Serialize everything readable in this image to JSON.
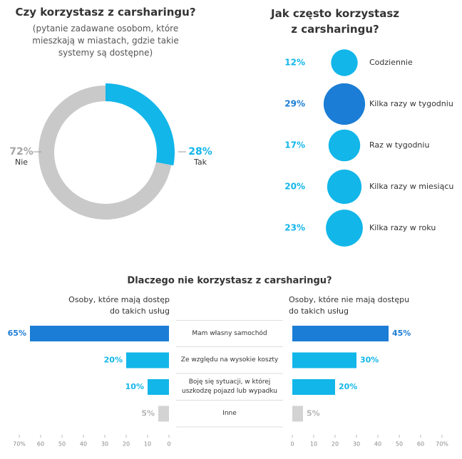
{
  "chart_data": [
    {
      "type": "donut",
      "title": "Czy korzystasz z carsharingu?",
      "subtitle": "(pytanie zadawane osobom, które mieszkają w miastach, gdzie takie systemy są dostępne)",
      "categories": [
        "Nie",
        "Tak"
      ],
      "values": [
        72,
        28
      ],
      "value_labels": [
        "72%",
        "28%"
      ],
      "colors": [
        "#c9c9c9",
        "#12b6e9"
      ]
    },
    {
      "type": "bubble",
      "title": "Jak często korzystasz z carsharingu?",
      "categories": [
        "Codziennie",
        "Kilka razy w tygodniu",
        "Raz w tygodniu",
        "Kilka razy w miesiącu",
        "Kilka razy w roku"
      ],
      "values": [
        12,
        29,
        17,
        20,
        23
      ],
      "value_labels": [
        "12%",
        "29%",
        "17%",
        "20%",
        "23%"
      ],
      "colors": [
        "#12b6e9",
        "#1b7dd5",
        "#12b6e9",
        "#12b6e9",
        "#12b6e9"
      ]
    },
    {
      "type": "butterfly-bar",
      "title": "Dlaczego nie korzystasz z carsharingu?",
      "categories": [
        "Mam własny samochód",
        "Ze względu na wysokie koszty",
        "Boję się sytuacji, w której uszkodzę pojazd lub wypadku",
        "Inne"
      ],
      "series": [
        {
          "name": "Osoby, które mają dostęp do takich usług",
          "values": [
            65,
            20,
            10,
            5
          ],
          "value_labels": [
            "65%",
            "20%",
            "10%",
            "5%"
          ],
          "colors": [
            "#1b7dd5",
            "#12b6e9",
            "#12b6e9",
            "#d3d3d3"
          ]
        },
        {
          "name": "Osoby, które nie mają dostępu do takich usług",
          "values": [
            45,
            30,
            20,
            5
          ],
          "value_labels": [
            "45%",
            "30%",
            "20%",
            "5%"
          ],
          "colors": [
            "#1b7dd5",
            "#12b6e9",
            "#12b6e9",
            "#d3d3d3"
          ]
        }
      ],
      "xlim": [
        0,
        70
      ],
      "xticks": [
        0,
        10,
        20,
        30,
        40,
        50,
        60,
        {
          "value": 70,
          "label": "70%"
        }
      ]
    }
  ]
}
